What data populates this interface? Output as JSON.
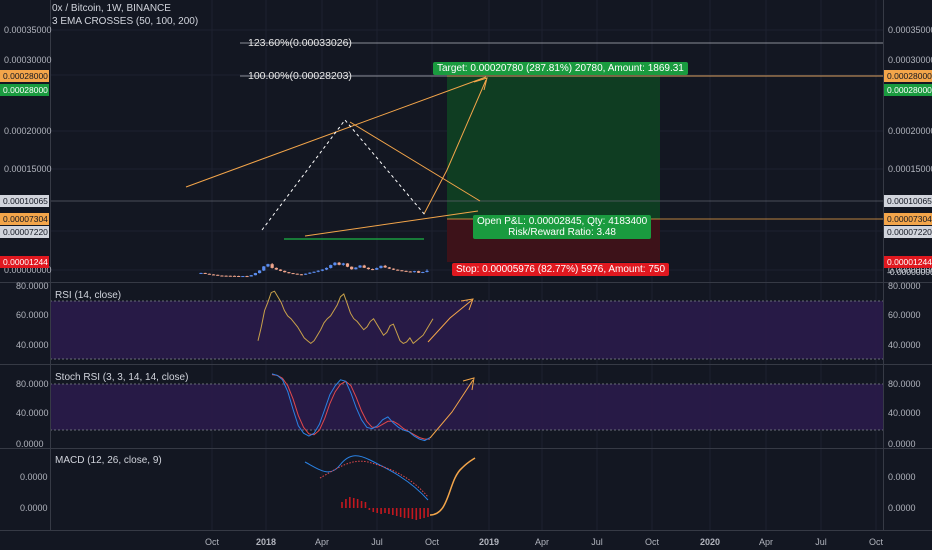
{
  "header": {
    "title": "0x / Bitcoin, 1W, BINANCE",
    "indicator": "3 EMA CROSSES (50, 100, 200)"
  },
  "colors": {
    "bg": "#131722",
    "up": "#5b8def",
    "down": "#f0a58c",
    "target": "#1a7f3a",
    "stop": "#c2181f",
    "orange": "#f3a54a",
    "rsi": "#c8a14a",
    "macd": "#2a82e4",
    "signal": "#e0484c"
  },
  "main": {
    "fib_labels": [
      "123.60%(0.00033026)",
      "100.00%(0.00028203)"
    ],
    "target_label": "Target: 0.00020780 (287.81%) 20780, Amount: 1869.31",
    "pnl_label_1": "Open P&L: 0.00002845, Qty: 4183400",
    "pnl_label_2": "Risk/Reward Ratio: 3.48",
    "stop_label": "Stop: 0.00005976 (82.77%) 5976, Amount: 750",
    "ticks": [
      "0.00035000",
      "0.00030000",
      "0.00020000",
      "0.00015000",
      "0.00000000"
    ],
    "left_badges": [
      {
        "text": "0.00028000",
        "bg": "#f3a54a",
        "fg": "#131722"
      },
      {
        "text": "0.00028000",
        "bg": "#1a9b3f",
        "fg": "#ffffff"
      },
      {
        "text": "0.00010065",
        "bg": "#d1d4dc",
        "fg": "#131722"
      },
      {
        "text": "0.00007304",
        "bg": "#f3a54a",
        "fg": "#131722"
      },
      {
        "text": "0.00007220",
        "bg": "#d1d4dc",
        "fg": "#131722"
      },
      {
        "text": "0.00001244",
        "bg": "#e0181f",
        "fg": "#ffffff"
      }
    ],
    "right_badges": [
      {
        "text": "0.00028000",
        "bg": "#f3a54a",
        "fg": "#131722"
      },
      {
        "text": "0.00028000",
        "bg": "#1a9b3f",
        "fg": "#ffffff"
      },
      {
        "text": "0.00010065",
        "bg": "#d1d4dc",
        "fg": "#131722"
      },
      {
        "text": "0.00007304",
        "bg": "#f3a54a",
        "fg": "#131722"
      },
      {
        "text": "0.00007220",
        "bg": "#d1d4dc",
        "fg": "#131722"
      },
      {
        "text": "0.00001244",
        "bg": "#e0181f",
        "fg": "#ffffff"
      },
      {
        "text": "-0.00000000",
        "bg": "",
        "fg": "#d1d4dc"
      }
    ]
  },
  "rsi": {
    "label": "RSI (14, close)",
    "ticks": [
      "80.0000",
      "60.0000",
      "40.0000"
    ]
  },
  "stoch": {
    "label": "Stoch RSI (3, 3, 14, 14, close)",
    "ticks": [
      "80.0000",
      "40.0000",
      "0.0000"
    ]
  },
  "macd": {
    "label": "MACD (12, 26, close, 9)",
    "ticks": [
      "0.0000",
      "0.0000"
    ]
  },
  "xaxis": {
    "labels": [
      "Oct",
      "2018",
      "Apr",
      "Jul",
      "Oct",
      "2019",
      "Apr",
      "Jul",
      "Oct",
      "2020",
      "Apr",
      "Jul",
      "Oct"
    ]
  },
  "chart_data": {
    "type": "candlestick",
    "title": "0x / Bitcoin, 1W, BINANCE",
    "candles_ohlc": [
      [
        6.8e-06,
        7.4e-06,
        6.5e-06,
        7.2e-06
      ],
      [
        7.2e-06,
        7.4e-06,
        6e-06,
        6.1e-06
      ],
      [
        6.1e-06,
        6.4e-06,
        5e-06,
        5.2e-06
      ],
      [
        5.2e-06,
        5.5e-06,
        4.6e-06,
        4.7e-06
      ],
      [
        4.7e-06,
        4.8e-06,
        3.6e-06,
        3.7e-06
      ],
      [
        3.7e-06,
        4e-06,
        3.4e-06,
        3.5e-06
      ],
      [
        3.5e-06,
        3.9e-06,
        3.3e-06,
        3.4e-06
      ],
      [
        3.4e-06,
        3.7e-06,
        3.2e-06,
        3.3e-06
      ],
      [
        3.3e-06,
        3.6e-06,
        3e-06,
        3.1e-06
      ],
      [
        3.1e-06,
        3.4e-06,
        2.6e-06,
        2.7e-06
      ],
      [
        2.7e-06,
        3.1e-06,
        2.5e-06,
        3e-06
      ],
      [
        3e-06,
        3.4e-06,
        2.2e-06,
        2.4e-06
      ],
      [
        2.4e-06,
        4.5e-06,
        2.3e-06,
        4.2e-06
      ],
      [
        4.2e-06,
        7.3e-06,
        4e-06,
        7e-06
      ],
      [
        7e-06,
        1.09e-05,
        6.6e-06,
        1.05e-05
      ],
      [
        1.05e-05,
        1.65e-05,
        9.8e-06,
        1.6e-05
      ],
      [
        1.6e-05,
        1.96e-05,
        1.5e-05,
        1.9e-05
      ],
      [
        1.9e-05,
        2.05e-05,
        1.32e-05,
        1.4e-05
      ],
      [
        1.4e-05,
        1.45e-05,
        1.13e-05,
        1.18e-05
      ],
      [
        1.18e-05,
        1.22e-05,
        9.6e-06,
        1e-05
      ],
      [
        1e-05,
        1.04e-05,
        7.8e-06,
        8.2e-06
      ],
      [
        8.2e-06,
        8.5e-06,
        6.6e-06,
        7e-06
      ],
      [
        7e-06,
        7.2e-06,
        5.8e-06,
        6.2e-06
      ],
      [
        6.2e-06,
        6.4e-06,
        5e-06,
        5.4e-06
      ],
      [
        5.4e-06,
        5.6e-06,
        4.3e-06,
        4.8e-06
      ],
      [
        4.8e-06,
        6.5e-06,
        4.6e-06,
        6.2e-06
      ],
      [
        6.2e-06,
        8e-06,
        5.8e-06,
        7.6e-06
      ],
      [
        7.6e-06,
        9.2e-06,
        7.2e-06,
        8.8e-06
      ],
      [
        8.8e-06,
        1.08e-05,
        8.2e-06,
        1.02e-05
      ],
      [
        1.02e-05,
        1.22e-05,
        9.6e-06,
        1.18e-05
      ],
      [
        1.18e-05,
        1.46e-05,
        1.1e-05,
        1.4e-05
      ],
      [
        1.4e-05,
        1.84e-05,
        1.32e-05,
        1.78e-05
      ],
      [
        1.78e-05,
        2.18e-05,
        1.7e-05,
        2.1e-05
      ],
      [
        2.1e-05,
        2.2e-05,
        1.75e-05,
        1.82e-05
      ],
      [
        1.82e-05,
        2.08e-05,
        1.7e-05,
        2e-05
      ],
      [
        2e-05,
        2.04e-05,
        1.5e-05,
        1.56e-05
      ],
      [
        1.56e-05,
        1.6e-05,
        1.16e-05,
        1.22e-05
      ],
      [
        1.22e-05,
        1.5e-05,
        1.18e-05,
        1.45e-05
      ],
      [
        1.45e-05,
        1.78e-05,
        1.4e-05,
        1.72e-05
      ],
      [
        1.72e-05,
        1.82e-05,
        1.38e-05,
        1.42e-05
      ],
      [
        1.42e-05,
        1.47e-05,
        1.18e-05,
        1.24e-05
      ],
      [
        1.24e-05,
        1.3e-05,
        1.1e-05,
        1.16e-05
      ],
      [
        1.16e-05,
        1.45e-05,
        1.12e-05,
        1.38e-05
      ],
      [
        1.38e-05,
        1.72e-05,
        1.32e-05,
        1.68e-05
      ],
      [
        1.68e-05,
        1.8e-05,
        1.4e-05,
        1.46e-05
      ],
      [
        1.46e-05,
        1.52e-05,
        1.26e-05,
        1.3e-05
      ],
      [
        1.3e-05,
        1.34e-05,
        1.12e-05,
        1.16e-05
      ],
      [
        1.16e-05,
        1.2e-05,
        1.04e-05,
        1.08e-05
      ],
      [
        1.08e-05,
        1.1e-05,
        9.6e-06,
        1e-05
      ],
      [
        1e-05,
        1.03e-05,
        8.8e-06,
        9.2e-06
      ],
      [
        9.2e-06,
        9.5e-06,
        8e-06,
        8.4e-06
      ],
      [
        8.4e-06,
        1e-05,
        7.8e-06,
        9.6e-06
      ],
      [
        9.6e-06,
        1.01e-05,
        7.2e-06,
        7.5e-06
      ],
      [
        7.5e-06,
        8.8e-06,
        7e-06,
        8.5e-06
      ],
      [
        8.5e-06,
        1.2e-05,
        8e-06,
        1e-05
      ]
    ],
    "price_ylim": [
      -5e-06,
      0.000375
    ],
    "levels": {
      "fib_1236": 0.00033026,
      "fib_100": 0.00028203,
      "target": 0.00028,
      "current": 0.00010065,
      "entry": 7.304e-05,
      "stop": 1.244e-05
    },
    "rsi": [
      44,
      54,
      66,
      72,
      79,
      80,
      76,
      72,
      66,
      62,
      60,
      57,
      54,
      50,
      46,
      44,
      42,
      44,
      48,
      52,
      57,
      60,
      62,
      66,
      70,
      76,
      78,
      71,
      64,
      60,
      58,
      55,
      52,
      54,
      58,
      60,
      56,
      52,
      48,
      50,
      55,
      56,
      50,
      44,
      42,
      43,
      46,
      42,
      44,
      46,
      48,
      52,
      56,
      60
    ],
    "rsi_ylim": [
      27,
      86
    ],
    "stoch_k": [
      96,
      94,
      88,
      72,
      48,
      26,
      16,
      12,
      16,
      28,
      48,
      68,
      80,
      88,
      86,
      70,
      50,
      34,
      24,
      22,
      26,
      34,
      38,
      30,
      24,
      20,
      18,
      12,
      8,
      6,
      10
    ],
    "stoch_d": [
      95,
      94,
      90,
      80,
      62,
      40,
      24,
      15,
      14,
      20,
      36,
      56,
      72,
      82,
      86,
      80,
      64,
      46,
      32,
      24,
      24,
      28,
      32,
      32,
      28,
      22,
      18,
      14,
      10,
      8,
      8
    ],
    "stoch_ylim": [
      -4,
      108
    ],
    "macd_hist": [
      0.6,
      0.9,
      1.1,
      1.0,
      0.9,
      0.7,
      0.6,
      -0.2,
      -0.4,
      -0.5,
      -0.6,
      -0.5,
      -0.6,
      -0.7,
      -0.8,
      -0.9,
      -1.0,
      -1.0,
      -1.1,
      -1.2,
      -1.1,
      -1.0,
      -0.9
    ]
  }
}
